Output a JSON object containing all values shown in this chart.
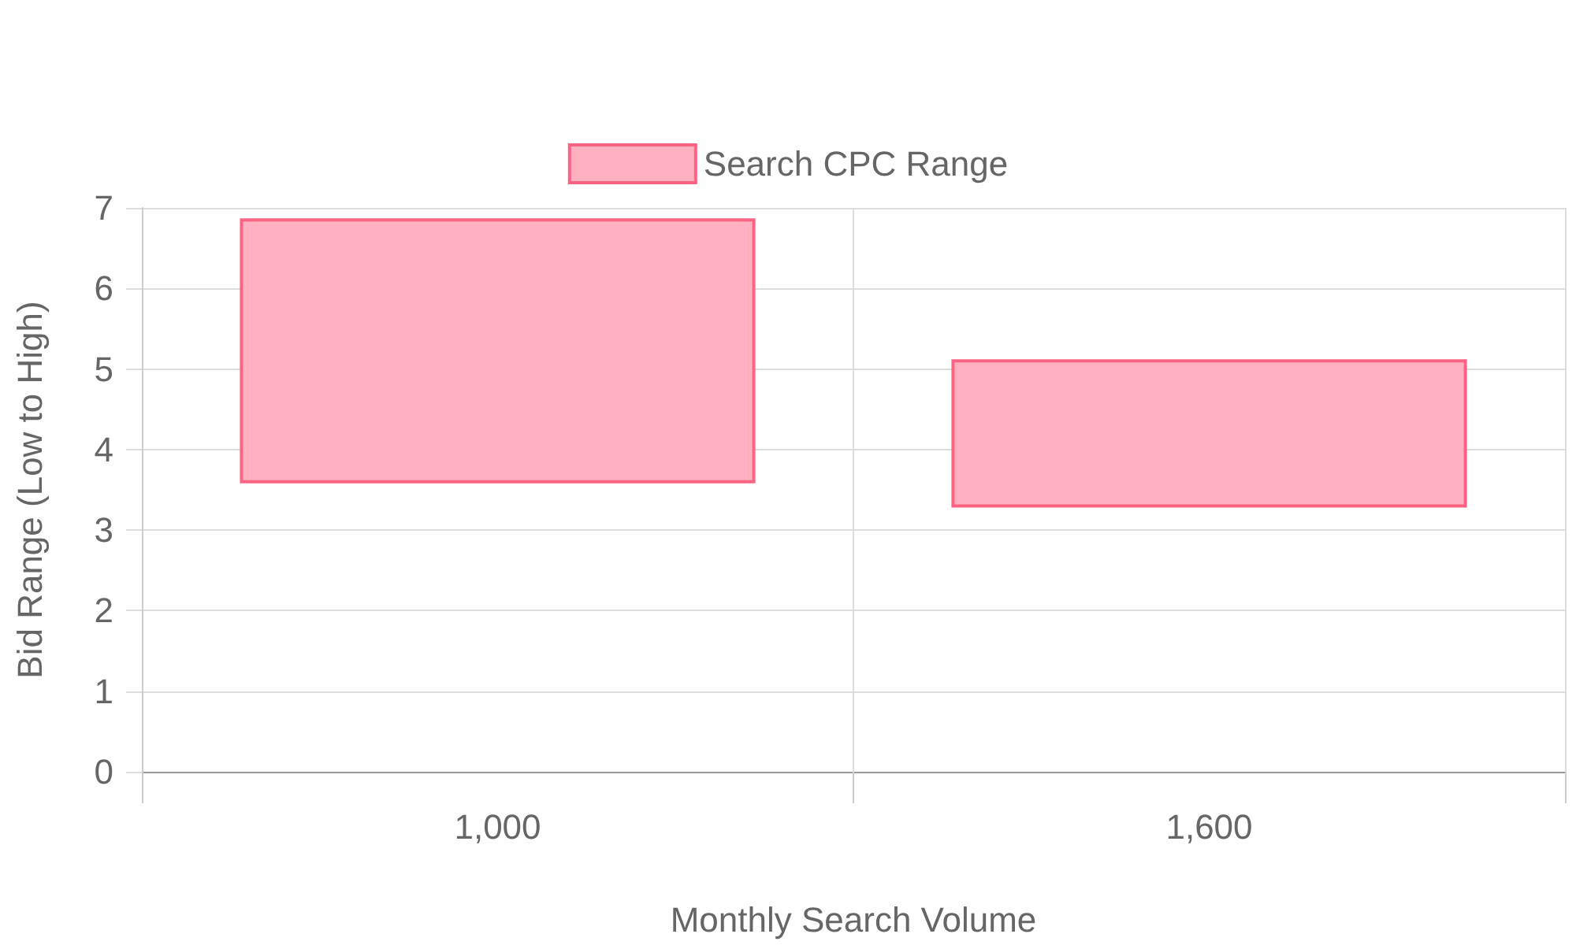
{
  "chart_data": {
    "type": "bar",
    "xlabel": "Monthly Search Volume",
    "ylabel": "Bid Range (Low to High)",
    "categories": [
      "1,000",
      "1,600"
    ],
    "series": [
      {
        "name": "Search CPC Range",
        "color": "#ffb1c1",
        "values": [
          3.25,
          1.8
        ],
        "base": [
          3.6,
          3.3
        ]
      }
    ],
    "ylim": [
      0,
      7
    ],
    "yticks": [
      0,
      1,
      2,
      3,
      4,
      5,
      6,
      7
    ],
    "grid": true,
    "legend": "top"
  }
}
